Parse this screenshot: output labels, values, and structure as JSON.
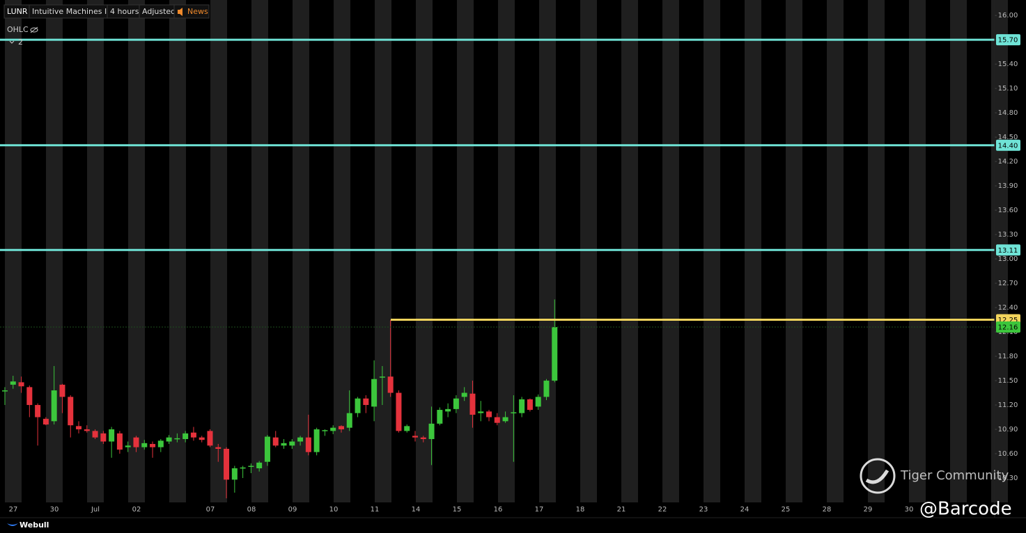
{
  "chart_data": {
    "type": "candlestick",
    "symbol": "LUNR",
    "name": "Intuitive Machines Inc",
    "interval": "4 hours",
    "adjustment": "Adjusted",
    "news": "News",
    "indicator": "OHLC",
    "panes": 2,
    "brand": "Webull",
    "watermark": "Tiger Community",
    "credit": "@Barcode",
    "up_color": "#3cc63c",
    "down_color": "#e5323c",
    "ylim": [
      10.0,
      16.19
    ],
    "yticks": [
      {
        "value": 16.0,
        "label": "16.00"
      },
      {
        "value": 15.7,
        "label": "15.70"
      },
      {
        "value": 15.4,
        "label": "15.40"
      },
      {
        "value": 15.1,
        "label": "15.10"
      },
      {
        "value": 14.8,
        "label": "14.80"
      },
      {
        "value": 14.5,
        "label": "14.50"
      },
      {
        "value": 14.2,
        "label": "14.20"
      },
      {
        "value": 13.9,
        "label": "13.90"
      },
      {
        "value": 13.6,
        "label": "13.60"
      },
      {
        "value": 13.3,
        "label": "13.30"
      },
      {
        "value": 13.0,
        "label": "13.00"
      },
      {
        "value": 12.7,
        "label": "12.70"
      },
      {
        "value": 12.4,
        "label": "12.40"
      },
      {
        "value": 12.1,
        "label": "12.10"
      },
      {
        "value": 11.8,
        "label": "11.80"
      },
      {
        "value": 11.5,
        "label": "11.50"
      },
      {
        "value": 11.2,
        "label": "11.20"
      },
      {
        "value": 10.9,
        "label": "10.90"
      },
      {
        "value": 10.6,
        "label": "10.60"
      },
      {
        "value": 10.3,
        "label": "10.30"
      }
    ],
    "categories": [
      "27",
      "30",
      "Jul",
      "02",
      "07",
      "08",
      "09",
      "10",
      "11",
      "14",
      "15",
      "16",
      "17",
      "18",
      "21",
      "22",
      "23",
      "24",
      "25",
      "28",
      "29",
      "30"
    ],
    "open": [
      11.37,
      11.45,
      11.48,
      11.42,
      11.2,
      11.03,
      11.0,
      11.45,
      11.3,
      10.94,
      10.9,
      10.88,
      10.85,
      10.75,
      10.85,
      10.68,
      10.8,
      10.68,
      10.72,
      10.68,
      10.75,
      10.78,
      10.78,
      10.86,
      10.8,
      10.88,
      10.68,
      10.66,
      10.28,
      10.42,
      10.44,
      10.42,
      10.5,
      10.8,
      10.7,
      10.7,
      10.75,
      10.8,
      10.62,
      10.88,
      10.88,
      10.94,
      10.92,
      11.1,
      11.28,
      11.18,
      11.54,
      11.55,
      11.35,
      10.88,
      10.82,
      10.8,
      10.78,
      10.97,
      11.12,
      11.15,
      11.3,
      11.34,
      11.1,
      11.12,
      11.05,
      11.0,
      11.1,
      11.1,
      11.27,
      11.18,
      11.3,
      11.5
    ],
    "high": [
      11.42,
      11.56,
      11.55,
      11.44,
      11.22,
      11.05,
      11.68,
      11.46,
      11.32,
      11.0,
      10.95,
      10.9,
      10.88,
      10.93,
      10.88,
      10.75,
      10.82,
      10.77,
      10.75,
      10.78,
      10.83,
      10.85,
      10.88,
      10.93,
      10.82,
      10.9,
      10.72,
      10.68,
      10.45,
      10.45,
      10.48,
      10.51,
      10.83,
      10.88,
      10.78,
      10.78,
      10.82,
      11.08,
      10.92,
      10.9,
      10.95,
      10.95,
      11.38,
      11.3,
      11.32,
      11.75,
      11.68,
      12.25,
      11.38,
      10.96,
      10.88,
      10.82,
      11.18,
      11.17,
      11.22,
      11.32,
      11.42,
      11.5,
      11.25,
      11.14,
      11.1,
      11.12,
      11.32,
      11.3,
      11.28,
      11.33,
      11.52,
      12.5
    ],
    "low": [
      11.2,
      11.4,
      11.35,
      11.05,
      10.7,
      10.95,
      10.96,
      11.1,
      10.8,
      10.85,
      10.86,
      10.78,
      10.72,
      10.55,
      10.6,
      10.62,
      10.62,
      10.65,
      10.55,
      10.62,
      10.72,
      10.74,
      10.74,
      10.76,
      10.74,
      10.68,
      10.5,
      10.05,
      10.12,
      10.3,
      10.36,
      10.38,
      10.45,
      10.68,
      10.66,
      10.66,
      10.7,
      10.58,
      10.58,
      10.82,
      10.84,
      10.86,
      10.88,
      11.05,
      11.1,
      11.0,
      11.2,
      11.3,
      10.86,
      10.86,
      10.75,
      10.74,
      10.46,
      10.95,
      11.05,
      11.1,
      11.25,
      10.92,
      11.0,
      11.0,
      10.95,
      10.98,
      10.5,
      11.05,
      11.12,
      11.14,
      11.26,
      11.48
    ],
    "close": [
      11.38,
      11.49,
      11.43,
      11.2,
      11.05,
      10.96,
      11.38,
      11.3,
      10.95,
      10.9,
      10.88,
      10.8,
      10.75,
      10.9,
      10.65,
      10.7,
      10.68,
      10.73,
      10.68,
      10.76,
      10.8,
      10.79,
      10.85,
      10.8,
      10.77,
      10.7,
      10.66,
      10.28,
      10.42,
      10.43,
      10.45,
      10.49,
      10.81,
      10.7,
      10.73,
      10.75,
      10.8,
      10.62,
      10.9,
      10.89,
      10.92,
      10.9,
      11.1,
      11.28,
      11.2,
      11.52,
      11.55,
      11.35,
      10.88,
      10.94,
      10.8,
      10.78,
      10.97,
      11.14,
      11.15,
      11.28,
      11.35,
      11.08,
      11.12,
      11.05,
      10.98,
      11.05,
      11.11,
      11.27,
      11.14,
      11.3,
      11.5,
      12.16
    ],
    "levels": [
      {
        "value": 15.7,
        "label": "15.70",
        "color": "#6fe3d6"
      },
      {
        "value": 14.4,
        "label": "14.40",
        "color": "#6fe3d6"
      },
      {
        "value": 13.11,
        "label": "13.11",
        "color": "#6fe3d6"
      },
      {
        "value": 12.25,
        "label": "12.25",
        "color": "#f2d45c"
      },
      {
        "value": 12.16,
        "label": "12.16",
        "color": "#3cc63c"
      }
    ]
  }
}
